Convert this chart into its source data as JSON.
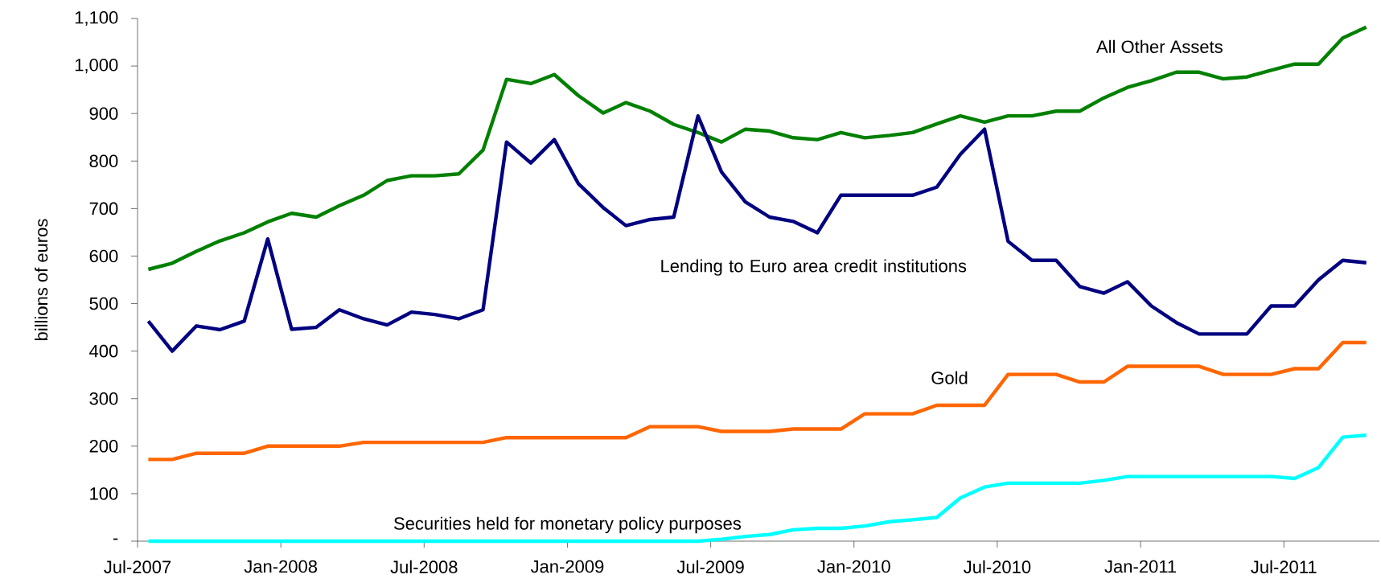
{
  "chart_data": {
    "type": "line",
    "ylabel": "billions of euros",
    "x": [
      "2007-07-15",
      "2007-08-15",
      "2007-09-15",
      "2007-10-15",
      "2007-11-15",
      "2007-12-15",
      "2008-01-15",
      "2008-02-15",
      "2008-03-15",
      "2008-04-15",
      "2008-05-15",
      "2008-06-15",
      "2008-07-15",
      "2008-08-15",
      "2008-09-15",
      "2008-10-15",
      "2008-11-15",
      "2008-12-15",
      "2009-01-15",
      "2009-02-15",
      "2009-03-15",
      "2009-04-15",
      "2009-05-15",
      "2009-06-15",
      "2009-07-15",
      "2009-08-15",
      "2009-09-15",
      "2009-10-15",
      "2009-11-15",
      "2009-12-15",
      "2010-01-15",
      "2010-02-15",
      "2010-03-15",
      "2010-04-15",
      "2010-05-15",
      "2010-06-15",
      "2010-07-15",
      "2010-08-15",
      "2010-09-15",
      "2010-10-15",
      "2010-11-15",
      "2010-12-15",
      "2011-01-15",
      "2011-02-15",
      "2011-03-15",
      "2011-04-15",
      "2011-05-15",
      "2011-06-15",
      "2011-07-15",
      "2011-08-15",
      "2011-09-15",
      "2011-10-15"
    ],
    "series": [
      {
        "name": "All Other Assets",
        "color": "#008000",
        "values": [
          572,
          585,
          610,
          632,
          649,
          672,
          690,
          682,
          706,
          728,
          759,
          769,
          769,
          773,
          823,
          972,
          963,
          982,
          938,
          901,
          923,
          905,
          877,
          860,
          840,
          867,
          863,
          849,
          845,
          860,
          849,
          854,
          860,
          878,
          895,
          882,
          895,
          895,
          905,
          905,
          933,
          955,
          969,
          987,
          987,
          973,
          977,
          991,
          1004,
          1004,
          1059,
          1082
        ]
      },
      {
        "name": "Lending to Euro area credit institutions",
        "color": "#000080",
        "values": [
          463,
          400,
          453,
          445,
          463,
          636,
          446,
          450,
          487,
          468,
          455,
          482,
          477,
          468,
          487,
          840,
          796,
          845,
          753,
          702,
          664,
          677,
          682,
          895,
          777,
          714,
          682,
          673,
          649,
          728,
          728,
          728,
          728,
          745,
          814,
          867,
          631,
          591,
          591,
          536,
          522,
          546,
          495,
          460,
          436,
          436,
          436,
          495,
          495,
          550,
          591,
          586
        ]
      },
      {
        "name": "Gold",
        "color": "#ff6600",
        "values": [
          172,
          172,
          185,
          185,
          185,
          200,
          200,
          200,
          200,
          208,
          208,
          208,
          208,
          208,
          208,
          218,
          218,
          218,
          218,
          218,
          218,
          241,
          241,
          241,
          231,
          231,
          231,
          236,
          236,
          236,
          268,
          268,
          268,
          286,
          286,
          286,
          351,
          351,
          351,
          335,
          335,
          368,
          368,
          368,
          368,
          351,
          351,
          351,
          363,
          363,
          418,
          418
        ]
      },
      {
        "name": "Securities held for monetary policy purposes",
        "color": "#00ffff",
        "values": [
          0,
          0,
          0,
          0,
          0,
          0,
          0,
          0,
          0,
          0,
          0,
          0,
          0,
          0,
          0,
          0,
          0,
          0,
          0,
          0,
          0,
          0,
          0,
          0,
          4,
          10,
          14,
          24,
          27,
          27,
          32,
          41,
          45,
          50,
          91,
          114,
          122,
          122,
          122,
          122,
          128,
          136,
          136,
          136,
          136,
          136,
          136,
          136,
          132,
          155,
          219,
          223
        ]
      }
    ],
    "xlim": [
      "2007-07-01",
      "2011-11-01"
    ],
    "xticks": [
      {
        "value": "2007-07-01",
        "label": "Jul-2007"
      },
      {
        "value": "2008-01-01",
        "label": "Jan-2008"
      },
      {
        "value": "2008-07-01",
        "label": "Jul-2008"
      },
      {
        "value": "2009-01-01",
        "label": "Jan-2009"
      },
      {
        "value": "2009-07-01",
        "label": "Jul-2009"
      },
      {
        "value": "2010-01-01",
        "label": "Jan-2010"
      },
      {
        "value": "2010-07-01",
        "label": "Jul-2010"
      },
      {
        "value": "2011-01-01",
        "label": "Jan-2011"
      },
      {
        "value": "2011-07-01",
        "label": "Jul-2011"
      }
    ],
    "ylim": [
      0,
      1100
    ],
    "yticks": [
      {
        "value": 0,
        "label": "-"
      },
      100,
      200,
      300,
      400,
      500,
      600,
      700,
      800,
      900,
      {
        "value": 1000,
        "label": "1,000"
      },
      {
        "value": 1100,
        "label": "1,100"
      }
    ]
  }
}
